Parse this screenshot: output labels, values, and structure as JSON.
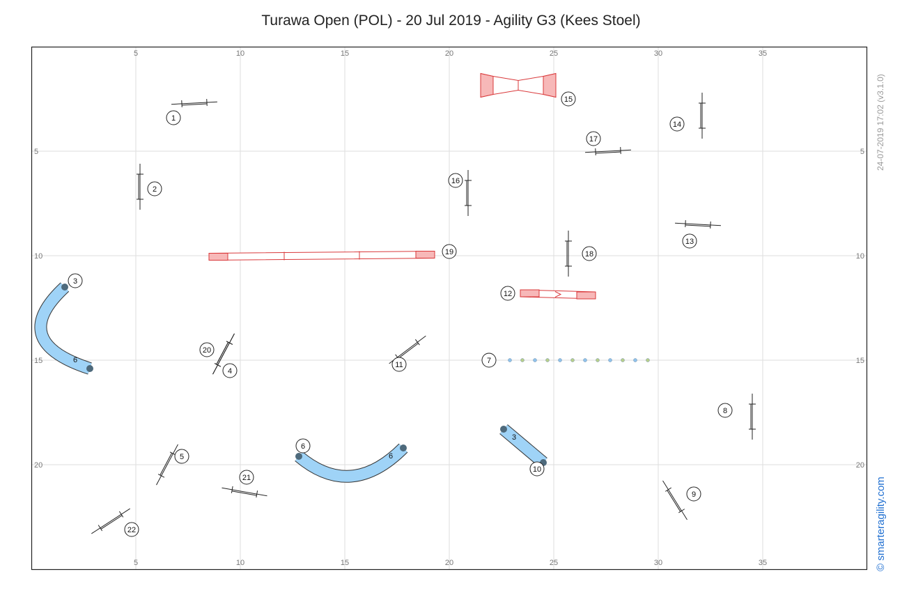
{
  "title": "Turawa Open (POL) - 20 Jul 2019 - Agility G3 (Kees Stoel)",
  "timestamp": "24-07-2019 17:02  (v3.1.0)",
  "brand": "© smarteragility.com",
  "x_ticks": [
    "5",
    "10",
    "15",
    "20",
    "25",
    "30",
    "35"
  ],
  "y_ticks": [
    "5",
    "10",
    "15",
    "20"
  ],
  "colors": {
    "tunnel": "#9fd3f7",
    "tunnel_end": "#4e6a7c",
    "contact": "#f7b8b8",
    "contact_stroke": "#d9383a",
    "weave_blue": "#8fc2ec",
    "weave_green": "#b8cf8a"
  },
  "chart_data": {
    "type": "agility-course-map",
    "units": "m",
    "xlim": [
      0,
      40
    ],
    "ylim": [
      0,
      25
    ],
    "grid": true,
    "jumps": [
      {
        "number": "1",
        "x": 7.8,
        "y": 2.7,
        "angle": -3,
        "label_x": 6.8,
        "label_y": 3.4
      },
      {
        "number": "2",
        "x": 5.2,
        "y": 6.7,
        "angle": 90,
        "label_x": 5.9,
        "label_y": 6.8
      },
      {
        "number": "4",
        "x": 9.2,
        "y": 14.7,
        "angle": 118,
        "label_x": 9.5,
        "label_y": 15.5
      },
      {
        "number": "5",
        "x": 6.5,
        "y": 20.0,
        "angle": 118,
        "label_x": 7.2,
        "label_y": 19.6
      },
      {
        "number": "8",
        "x": 34.5,
        "y": 17.7,
        "angle": 90,
        "label_x": 33.2,
        "label_y": 17.4
      },
      {
        "number": "9",
        "x": 30.8,
        "y": 21.7,
        "angle": 58,
        "label_x": 31.7,
        "label_y": 21.4
      },
      {
        "number": "11",
        "x": 18.0,
        "y": 14.5,
        "angle": -37,
        "label_x": 17.6,
        "label_y": 15.2
      },
      {
        "number": "13",
        "x": 31.9,
        "y": 8.5,
        "angle": 3,
        "label_x": 31.5,
        "label_y": 9.3
      },
      {
        "number": "14",
        "x": 32.1,
        "y": 3.3,
        "angle": 90,
        "label_x": 30.9,
        "label_y": 3.7
      },
      {
        "number": "16",
        "x": 20.9,
        "y": 7.0,
        "angle": 90,
        "label_x": 20.3,
        "label_y": 6.4
      },
      {
        "number": "17",
        "x": 27.6,
        "y": 5.0,
        "angle": -3,
        "label_x": 26.9,
        "label_y": 4.4
      },
      {
        "number": "18",
        "x": 25.7,
        "y": 9.9,
        "angle": 90,
        "label_x": 26.7,
        "label_y": 9.9
      },
      {
        "number": "20",
        "x": 9.2,
        "y": 14.7,
        "angle": 118,
        "label_x": 8.4,
        "label_y": 14.5
      },
      {
        "number": "21",
        "x": 10.2,
        "y": 21.3,
        "angle": 10,
        "label_x": 10.3,
        "label_y": 20.6
      },
      {
        "number": "22",
        "x": 3.8,
        "y": 22.7,
        "angle": -33,
        "label_x": 4.8,
        "label_y": 23.1
      }
    ],
    "tunnels": [
      {
        "numbers": [
          "3"
        ],
        "curve_label": "6",
        "label_x": 2.1,
        "label_y": 11.2,
        "x_start": 1.6,
        "y_start": 11.5,
        "x_end": 2.8,
        "y_end": 15.4,
        "x_ctrl": -1.2,
        "y_ctrl": 14.1,
        "inner_label_x": 2.1,
        "inner_label_y": 15.0
      },
      {
        "numbers": [
          "6"
        ],
        "curve_label": "6",
        "label_x": 13.0,
        "label_y": 19.1,
        "x_start": 12.8,
        "y_start": 19.6,
        "x_end": 17.8,
        "y_end": 19.2,
        "x_ctrl": 15.3,
        "y_ctrl": 21.7,
        "inner_label_x": 17.2,
        "inner_label_y": 19.6
      },
      {
        "numbers": [
          "10"
        ],
        "curve_label": "3",
        "label_x": 24.2,
        "label_y": 20.2,
        "x_start": 22.6,
        "y_start": 18.3,
        "x_end": 24.5,
        "y_end": 19.9,
        "x_ctrl": 23.55,
        "y_ctrl": 19.1,
        "inner_label_x": 23.1,
        "inner_label_y": 18.7
      }
    ],
    "dogwalk": {
      "number": "19",
      "label_x": 20.0,
      "label_y": 9.8,
      "x_start": 8.5,
      "y_start": 10.05,
      "x_end": 19.3,
      "y_end": 9.95
    },
    "seesaw": {
      "number": "12",
      "label_x": 22.8,
      "label_y": 11.8,
      "x_start": 23.4,
      "y_start": 11.8,
      "x_end": 27.0,
      "y_end": 11.9
    },
    "aframe": {
      "number": "15",
      "label_x": 25.7,
      "label_y": 2.5,
      "x_start": 21.5,
      "x_end": 25.1,
      "y": 1.85
    },
    "weave": {
      "number": "7",
      "label_x": 21.9,
      "label_y": 15.0,
      "x_start": 22.9,
      "x_end": 29.5,
      "y": 15.0,
      "poles": 12
    }
  }
}
